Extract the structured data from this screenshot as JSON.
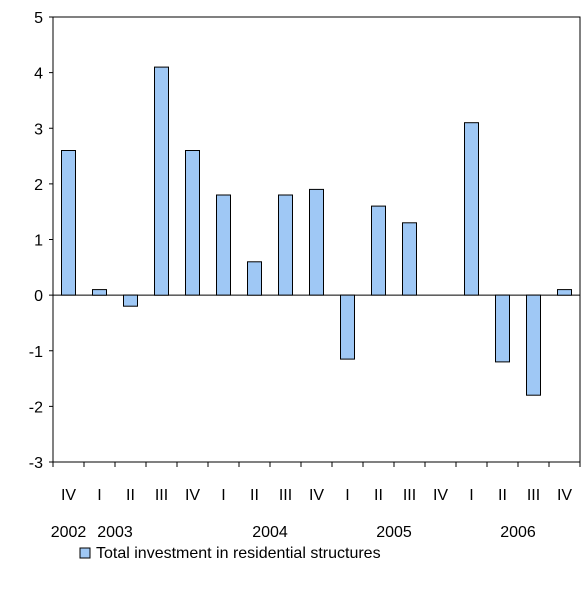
{
  "chart_data": {
    "type": "bar",
    "title": "",
    "xlabel": "",
    "ylabel": "",
    "ylim": [
      -3,
      5
    ],
    "yticks": [
      "5",
      "4",
      "3",
      "2",
      "1",
      "0",
      "-1",
      "-2",
      "-3"
    ],
    "categories": [
      "IV",
      "I",
      "II",
      "III",
      "IV",
      "I",
      "II",
      "III",
      "IV",
      "I",
      "II",
      "III",
      "IV",
      "I",
      "II",
      "III",
      "IV"
    ],
    "years": [
      {
        "label": "2002",
        "quarter_index": 0
      },
      {
        "label": "2003",
        "quarter_index": 1.5
      },
      {
        "label": "2004",
        "quarter_index": 6.5
      },
      {
        "label": "2005",
        "quarter_index": 10.5
      },
      {
        "label": "2006",
        "quarter_index": 14.5
      }
    ],
    "series": [
      {
        "name": "Total investment in residential structures",
        "values": [
          2.6,
          0.1,
          -0.2,
          4.1,
          2.6,
          1.8,
          0.6,
          1.8,
          1.9,
          -1.15,
          1.6,
          1.3,
          0.0,
          3.1,
          -1.2,
          -1.8,
          0.1
        ]
      }
    ],
    "legend": {
      "position": "bottom",
      "label": "Total investment in residential structures"
    },
    "grid": false,
    "colors": {
      "bar_fill": "#9fc8f5",
      "bar_stroke": "#000000",
      "axis": "#000000"
    }
  }
}
